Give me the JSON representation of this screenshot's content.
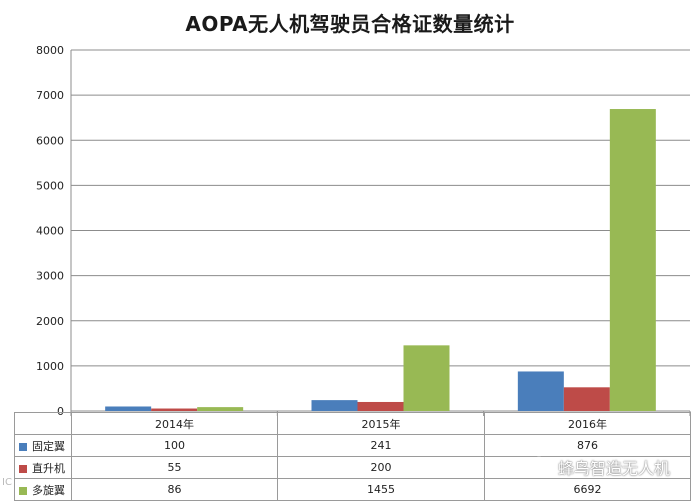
{
  "chart_data": {
    "type": "bar",
    "title": "AOPA无人机驾驶员合格证数量统计",
    "categories": [
      "2014年",
      "2015年",
      "2016年"
    ],
    "series": [
      {
        "name": "固定翼",
        "color": "#4a7ebb",
        "values": [
          100,
          241,
          876
        ]
      },
      {
        "name": "直升机",
        "color": "#be4b48",
        "values": [
          55,
          200,
          525
        ]
      },
      {
        "name": "多旋翼",
        "color": "#98b954",
        "values": [
          86,
          1455,
          6692
        ]
      }
    ],
    "ylim": [
      0,
      8000
    ],
    "yticks": [
      0,
      1000,
      2000,
      3000,
      4000,
      5000,
      6000,
      7000,
      8000
    ],
    "grid": true,
    "legend": "data-table",
    "table": [
      [
        "100",
        "241",
        "876"
      ],
      [
        "55",
        "200",
        ""
      ],
      [
        "86",
        "1455",
        "6692"
      ]
    ]
  },
  "watermarks": {
    "left": "IC",
    "right": "蜂鸟智造无人机"
  }
}
